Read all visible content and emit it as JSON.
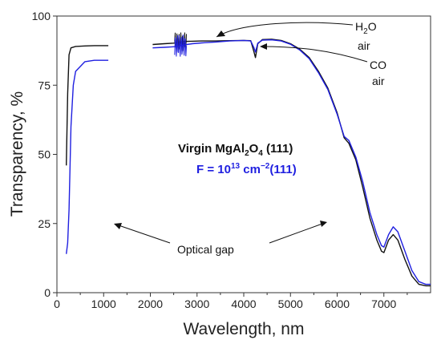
{
  "chart_data": {
    "type": "line",
    "xlabel": "Wavelength, nm",
    "ylabel": "Transparency, %",
    "xlim": [
      0,
      8000
    ],
    "ylim": [
      0,
      100
    ],
    "xticks": [
      "0",
      "1000",
      "2000",
      "3000",
      "4000",
      "5000",
      "6000",
      "7000"
    ],
    "yticks": [
      "0",
      "25",
      "50",
      "75",
      "100"
    ],
    "grid": false,
    "series": [
      {
        "name_parts": [
          "Virgin MgAl",
          "2",
          "O",
          "4",
          " (111)"
        ],
        "color": "#111111",
        "segments": [
          [
            [
              200,
              46
            ],
            [
              230,
              72
            ],
            [
              260,
              86
            ],
            [
              300,
              88.5
            ],
            [
              400,
              89
            ],
            [
              600,
              89.2
            ],
            [
              800,
              89.3
            ],
            [
              1100,
              89.3
            ]
          ],
          [
            [
              2050,
              89.7
            ],
            [
              2300,
              90
            ],
            [
              2500,
              90.2
            ],
            [
              2600,
              90.5
            ],
            [
              2700,
              90.8
            ],
            [
              2900,
              90.9
            ],
            [
              3100,
              91
            ],
            [
              3400,
              91
            ],
            [
              3700,
              91.1
            ],
            [
              4000,
              91.2
            ],
            [
              4150,
              91.1
            ],
            [
              4220,
              87
            ],
            [
              4250,
              85
            ],
            [
              4300,
              90
            ],
            [
              4400,
              91.5
            ],
            [
              4600,
              91.6
            ],
            [
              4800,
              91.2
            ],
            [
              5000,
              90
            ],
            [
              5200,
              88
            ],
            [
              5400,
              85
            ],
            [
              5600,
              80
            ],
            [
              5800,
              74
            ],
            [
              6000,
              65
            ],
            [
              6150,
              56
            ],
            [
              6250,
              54
            ],
            [
              6400,
              48
            ],
            [
              6550,
              38
            ],
            [
              6700,
              27
            ],
            [
              6850,
              19
            ],
            [
              6950,
              15
            ],
            [
              7000,
              14.5
            ],
            [
              7100,
              19
            ],
            [
              7200,
              21
            ],
            [
              7300,
              19
            ],
            [
              7450,
              12
            ],
            [
              7600,
              6
            ],
            [
              7750,
              3
            ],
            [
              7900,
              2.5
            ],
            [
              8000,
              2.5
            ]
          ]
        ]
      },
      {
        "name_parts": [
          "F = 10",
          "13",
          " cm",
          "−2",
          "(111)"
        ],
        "color": "#1f1fe0",
        "segments": [
          [
            [
              200,
              14
            ],
            [
              230,
              18
            ],
            [
              260,
              30
            ],
            [
              300,
              60
            ],
            [
              350,
              75
            ],
            [
              400,
              80
            ],
            [
              600,
              83.5
            ],
            [
              800,
              84
            ],
            [
              1100,
              84
            ]
          ],
          [
            [
              2050,
              88.5
            ],
            [
              2300,
              88.7
            ],
            [
              2500,
              88.9
            ],
            [
              2600,
              89
            ],
            [
              2700,
              89.5
            ],
            [
              2900,
              90
            ],
            [
              3100,
              90.3
            ],
            [
              3400,
              90.6
            ],
            [
              3700,
              91
            ],
            [
              4000,
              91.2
            ],
            [
              4150,
              91
            ],
            [
              4220,
              88.5
            ],
            [
              4250,
              87
            ],
            [
              4300,
              90.2
            ],
            [
              4400,
              91.3
            ],
            [
              4600,
              91.4
            ],
            [
              4800,
              91
            ],
            [
              5000,
              89.8
            ],
            [
              5200,
              87.7
            ],
            [
              5400,
              84.6
            ],
            [
              5600,
              79.5
            ],
            [
              5800,
              73.5
            ],
            [
              6000,
              64.5
            ],
            [
              6150,
              56.5
            ],
            [
              6250,
              55
            ],
            [
              6400,
              49
            ],
            [
              6550,
              40
            ],
            [
              6700,
              29
            ],
            [
              6850,
              21
            ],
            [
              6950,
              17
            ],
            [
              7000,
              16.5
            ],
            [
              7100,
              21
            ],
            [
              7200,
              23.8
            ],
            [
              7300,
              22
            ],
            [
              7450,
              15
            ],
            [
              7600,
              8
            ],
            [
              7750,
              4
            ],
            [
              7900,
              3
            ],
            [
              8000,
              3
            ]
          ]
        ]
      }
    ],
    "annotations": {
      "h2o_label_parts": [
        "H",
        "2",
        "O"
      ],
      "h2o_air": "air",
      "co_label": "CO",
      "co_air": "air",
      "optical_gap": "Optical gap"
    }
  },
  "colors": {
    "black_series": "#111111",
    "blue_series": "#1f1fe0",
    "axis": "#333333"
  }
}
